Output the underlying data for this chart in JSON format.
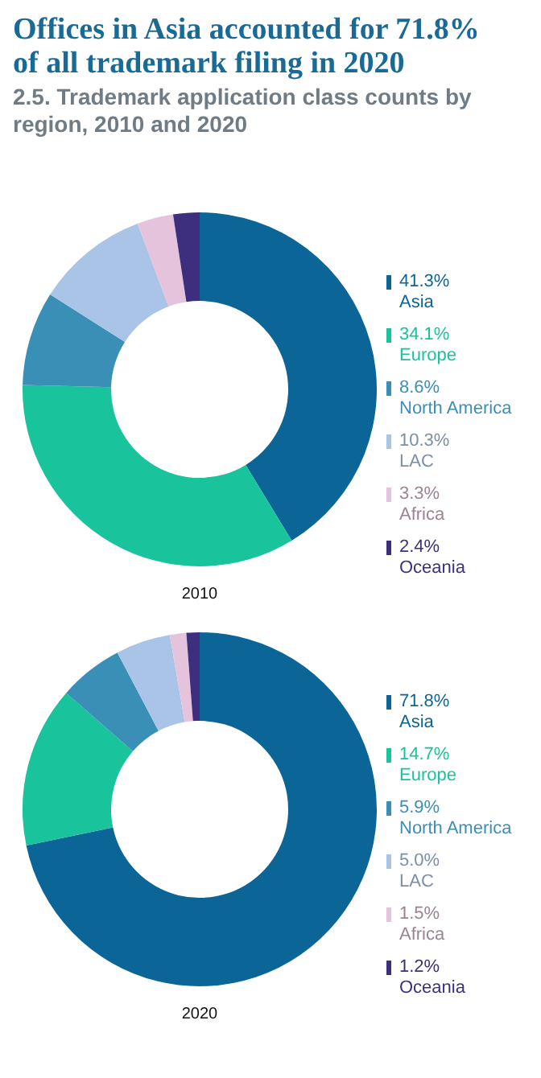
{
  "chart_data": [
    {
      "type": "donut",
      "title": "Offices in Asia accounted for 71.8% of all trademark filing in 2020",
      "subtitle": "2.5. Trademark application class counts by region, 2010 and 2020",
      "xlabel": "2010",
      "categories": [
        "Asia",
        "Europe",
        "North America",
        "LAC",
        "Africa",
        "Oceania"
      ],
      "values": [
        41.3,
        34.1,
        8.6,
        10.3,
        3.3,
        2.4
      ],
      "value_labels": [
        "41.3%",
        "34.1%",
        "8.6%",
        "10.3%",
        "3.3%",
        "2.4%"
      ],
      "colors": [
        "#0b6597",
        "#19c39b",
        "#3a8fb7",
        "#a9c4e6",
        "#e6c3dc",
        "#3d2f7d"
      ],
      "legend": "right"
    },
    {
      "type": "donut",
      "xlabel": "2020",
      "categories": [
        "Asia",
        "Europe",
        "North America",
        "LAC",
        "Africa",
        "Oceania"
      ],
      "values": [
        71.8,
        14.7,
        5.9,
        5.0,
        1.5,
        1.2
      ],
      "value_labels": [
        "71.8%",
        "14.7%",
        "5.9%",
        "5.0%",
        "1.5%",
        "1.2%"
      ],
      "colors": [
        "#0b6597",
        "#19c39b",
        "#3a8fb7",
        "#a9c4e6",
        "#e6c3dc",
        "#3d2f7d"
      ],
      "legend": "right"
    }
  ]
}
